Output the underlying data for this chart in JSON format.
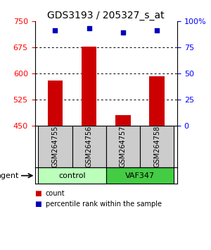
{
  "title": "GDS3193 / 205327_s_at",
  "samples": [
    "GSM264755",
    "GSM264756",
    "GSM264757",
    "GSM264758"
  ],
  "bar_values": [
    580,
    678,
    480,
    592
  ],
  "dot_values": [
    91,
    93,
    89,
    91
  ],
  "bar_color": "#cc0000",
  "dot_color": "#0000bb",
  "ylim_left": [
    450,
    750
  ],
  "ylim_right": [
    0,
    100
  ],
  "yticks_left": [
    450,
    525,
    600,
    675,
    750
  ],
  "yticks_right": [
    0,
    25,
    50,
    75,
    100
  ],
  "ytick_labels_right": [
    "0",
    "25",
    "50",
    "75",
    "100%"
  ],
  "groups": [
    {
      "label": "control",
      "cols": [
        0,
        1
      ],
      "color": "#bbffbb"
    },
    {
      "label": "VAF347",
      "cols": [
        2,
        3
      ],
      "color": "#44cc44"
    }
  ],
  "group_row_label": "agent",
  "legend": [
    {
      "label": "count",
      "color": "#cc0000"
    },
    {
      "label": "percentile rank within the sample",
      "color": "#0000bb"
    }
  ],
  "sample_box_color": "#cccccc",
  "title_fontsize": 10,
  "tick_fontsize": 8,
  "bar_width": 0.45
}
